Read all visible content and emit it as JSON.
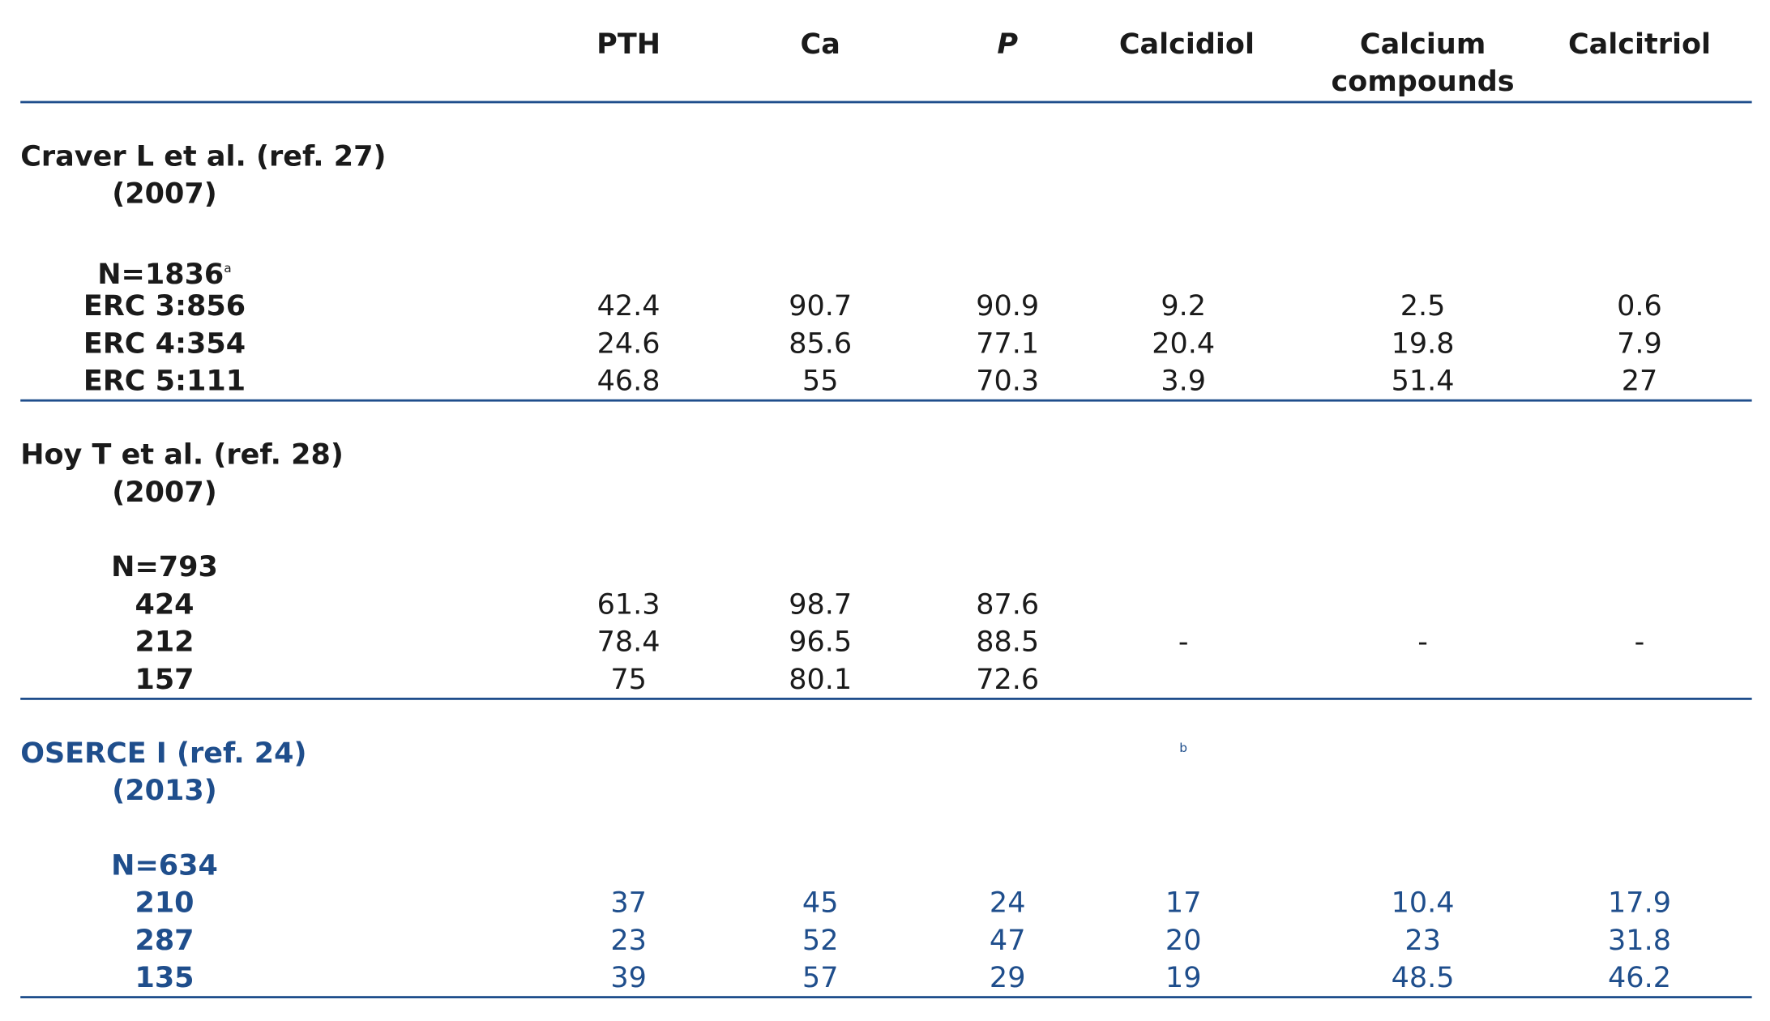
{
  "columns": [
    "PTH",
    "Ca",
    "P",
    "Calcidiol",
    "Calcium compounds",
    "Calcitriol"
  ],
  "header": {
    "pth": "PTH",
    "ca": "Ca",
    "p": "P",
    "calcidiol": "Calcidiol",
    "calcium_compounds_line1": "Calcium",
    "calcium_compounds_line2": "compounds",
    "calcitriol": "Calcitriol"
  },
  "studies": [
    {
      "title": "Craver L et al. (ref. 27)",
      "year": "(2007)",
      "n": "N=1836",
      "n_footnote": "a",
      "rows": [
        {
          "label": "ERC 3:856",
          "values": [
            "42.4",
            "90.7",
            "90.9",
            "9.2",
            "2.5",
            "0.6"
          ]
        },
        {
          "label": "ERC 4:354",
          "values": [
            "24.6",
            "85.6",
            "77.1",
            "20.4",
            "19.8",
            "7.9"
          ]
        },
        {
          "label": "ERC 5:111",
          "values": [
            "46.8",
            "55",
            "70.3",
            "3.9",
            "51.4",
            "27"
          ]
        }
      ]
    },
    {
      "title": "Hoy T et al. (ref. 28)",
      "year": "(2007)",
      "n": "N=793",
      "rows": [
        {
          "label": "424",
          "values": [
            "61.3",
            "98.7",
            "87.6"
          ]
        },
        {
          "label": "212",
          "values": [
            "78.4",
            "96.5",
            "88.5",
            "-",
            "-",
            "-"
          ]
        },
        {
          "label": "157",
          "values": [
            "75",
            "80.1",
            "72.6"
          ]
        }
      ]
    },
    {
      "title": "OSERCE I (ref. 24)",
      "year": "(2013)",
      "n": "N=634",
      "calcidiol_footnote": "b",
      "rows": [
        {
          "label": "210",
          "values": [
            "37",
            "45",
            "24",
            "17",
            "10.4",
            "17.9"
          ]
        },
        {
          "label": "287",
          "values": [
            "23",
            "52",
            "47",
            "20",
            "23",
            "31.8"
          ]
        },
        {
          "label": "135",
          "values": [
            "39",
            "57",
            "29",
            "19",
            "48.5",
            "46.2"
          ]
        }
      ]
    }
  ],
  "colors": {
    "rule": "#1f4e8c",
    "highlight_text": "#1f4e8c",
    "text": "#1a1a1a"
  }
}
